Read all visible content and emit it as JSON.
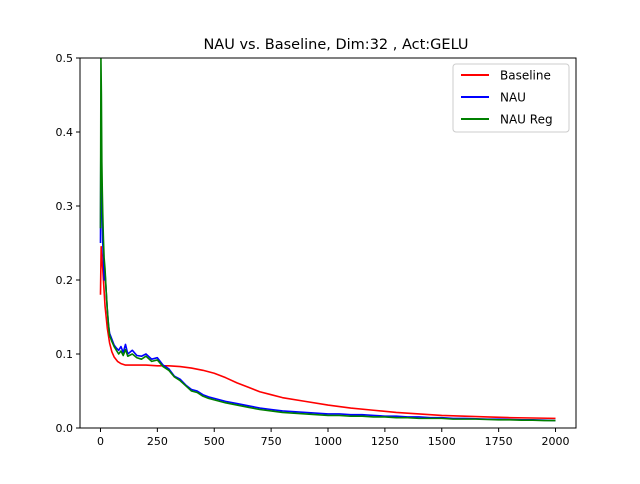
{
  "chart_data": {
    "type": "line",
    "title": "NAU vs. Baseline, Dim:32 , Act:GELU",
    "xlabel": "",
    "ylabel": "",
    "xlim": [
      -90,
      2090
    ],
    "ylim": [
      0,
      0.5
    ],
    "xticks": [
      0,
      250,
      500,
      750,
      1000,
      1250,
      1500,
      1750,
      2000
    ],
    "yticks": [
      0.0,
      0.1,
      0.2,
      0.3,
      0.4,
      0.5
    ],
    "xtick_labels": [
      "0",
      "250",
      "500",
      "750",
      "1000",
      "1250",
      "1500",
      "1750",
      "2000"
    ],
    "ytick_labels": [
      "0.0",
      "0.1",
      "0.2",
      "0.3",
      "0.4",
      "0.5"
    ],
    "grid": false,
    "legend_position": "top-right",
    "series": [
      {
        "name": "Baseline",
        "color": "#ff0000",
        "x": [
          0,
          3,
          6,
          10,
          15,
          20,
          30,
          40,
          50,
          60,
          75,
          90,
          110,
          130,
          150,
          200,
          250,
          300,
          350,
          400,
          450,
          500,
          550,
          600,
          650,
          700,
          750,
          800,
          900,
          1000,
          1100,
          1200,
          1300,
          1400,
          1500,
          1600,
          1700,
          1800,
          1900,
          2000
        ],
        "y": [
          0.18,
          0.245,
          0.23,
          0.215,
          0.19,
          0.165,
          0.135,
          0.115,
          0.103,
          0.096,
          0.09,
          0.087,
          0.085,
          0.085,
          0.085,
          0.085,
          0.084,
          0.084,
          0.083,
          0.081,
          0.078,
          0.074,
          0.068,
          0.061,
          0.055,
          0.049,
          0.045,
          0.041,
          0.036,
          0.031,
          0.027,
          0.024,
          0.021,
          0.019,
          0.017,
          0.016,
          0.015,
          0.014,
          0.0135,
          0.013
        ]
      },
      {
        "name": "NAU",
        "color": "#0000ff",
        "x": [
          0,
          2,
          4,
          6,
          8,
          10,
          13,
          16,
          20,
          25,
          30,
          35,
          40,
          50,
          60,
          70,
          80,
          90,
          100,
          110,
          120,
          140,
          160,
          180,
          200,
          225,
          250,
          275,
          300,
          325,
          350,
          375,
          400,
          425,
          450,
          475,
          500,
          550,
          600,
          650,
          700,
          750,
          800,
          850,
          900,
          950,
          1000,
          1050,
          1100,
          1150,
          1200,
          1250,
          1300,
          1350,
          1400,
          1450,
          1500,
          1550,
          1600,
          1650,
          1700,
          1750,
          1800,
          1850,
          1900,
          1950,
          2000
        ],
        "y": [
          0.25,
          0.415,
          0.37,
          0.3,
          0.28,
          0.25,
          0.23,
          0.2,
          0.21,
          0.185,
          0.16,
          0.14,
          0.128,
          0.12,
          0.112,
          0.108,
          0.105,
          0.11,
          0.102,
          0.113,
          0.1,
          0.105,
          0.098,
          0.097,
          0.1,
          0.093,
          0.095,
          0.085,
          0.08,
          0.07,
          0.066,
          0.058,
          0.052,
          0.05,
          0.045,
          0.042,
          0.04,
          0.036,
          0.033,
          0.03,
          0.027,
          0.025,
          0.023,
          0.022,
          0.021,
          0.02,
          0.019,
          0.019,
          0.018,
          0.018,
          0.017,
          0.016,
          0.016,
          0.015,
          0.015,
          0.014,
          0.014,
          0.013,
          0.013,
          0.0125,
          0.012,
          0.012,
          0.0115,
          0.011,
          0.011,
          0.0105,
          0.01
        ]
      },
      {
        "name": "NAU Reg",
        "color": "#008000",
        "x": [
          0,
          2,
          4,
          6,
          8,
          10,
          13,
          16,
          20,
          25,
          30,
          35,
          40,
          50,
          60,
          70,
          80,
          90,
          100,
          110,
          120,
          140,
          160,
          180,
          200,
          225,
          250,
          275,
          300,
          325,
          350,
          375,
          400,
          425,
          450,
          475,
          500,
          550,
          600,
          650,
          700,
          750,
          800,
          850,
          900,
          950,
          1000,
          1050,
          1100,
          1150,
          1200,
          1250,
          1300,
          1350,
          1400,
          1450,
          1500,
          1550,
          1600,
          1650,
          1700,
          1750,
          1800,
          1850,
          1900,
          1950,
          2000
        ],
        "y": [
          0.27,
          0.5,
          0.45,
          0.36,
          0.32,
          0.29,
          0.255,
          0.23,
          0.215,
          0.185,
          0.16,
          0.14,
          0.125,
          0.117,
          0.11,
          0.105,
          0.1,
          0.104,
          0.098,
          0.106,
          0.097,
          0.1,
          0.095,
          0.093,
          0.097,
          0.09,
          0.092,
          0.083,
          0.078,
          0.069,
          0.064,
          0.057,
          0.05,
          0.048,
          0.043,
          0.04,
          0.038,
          0.034,
          0.031,
          0.028,
          0.025,
          0.023,
          0.021,
          0.02,
          0.019,
          0.018,
          0.017,
          0.017,
          0.016,
          0.016,
          0.015,
          0.015,
          0.014,
          0.014,
          0.013,
          0.013,
          0.013,
          0.012,
          0.012,
          0.012,
          0.0115,
          0.011,
          0.011,
          0.0105,
          0.0105,
          0.01,
          0.01
        ]
      }
    ]
  }
}
